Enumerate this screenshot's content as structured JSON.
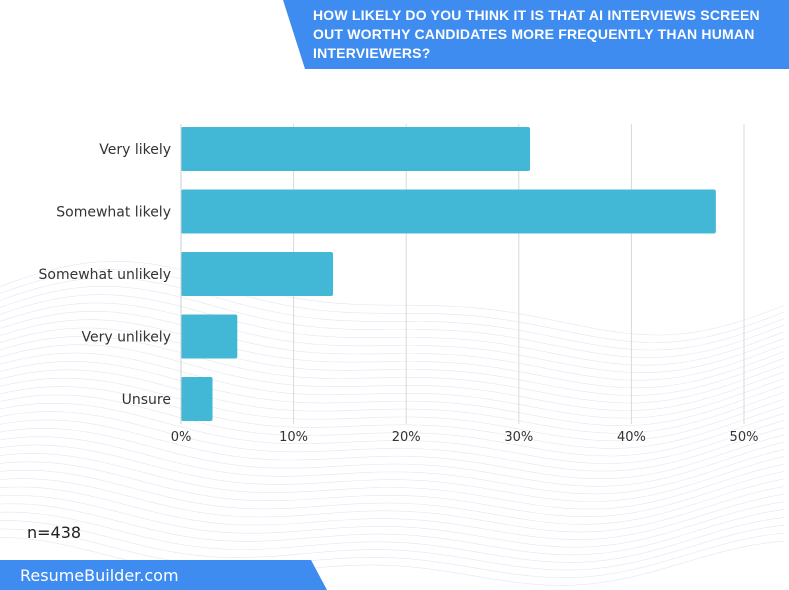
{
  "header": {
    "title": "HOW LIKELY DO YOU THINK IT IS THAT AI INTERVIEWS SCREEN OUT WORTHY CANDIDATES MORE FREQUENTLY THAN HUMAN INTERVIEWERS?"
  },
  "footer": {
    "sample_size": "n=438",
    "brand": "ResumeBuilder.com"
  },
  "colors": {
    "bar": "#42b8d6",
    "accent": "#3f8cf0",
    "grid": "#d9d9d9"
  },
  "chart_data": {
    "type": "bar",
    "orientation": "horizontal",
    "categories": [
      "Very likely",
      "Somewhat likely",
      "Somewhat unlikely",
      "Very unlikely",
      "Unsure"
    ],
    "values": [
      31,
      47.5,
      13.5,
      5,
      2.8
    ],
    "xlim": [
      0,
      50
    ],
    "x_ticks": [
      "0%",
      "10%",
      "20%",
      "30%",
      "40%",
      "50%"
    ],
    "grid": "vertical",
    "title": "HOW LIKELY DO YOU THINK IT IS THAT AI INTERVIEWS SCREEN OUT WORTHY CANDIDATES MORE FREQUENTLY THAN HUMAN INTERVIEWERS?"
  }
}
